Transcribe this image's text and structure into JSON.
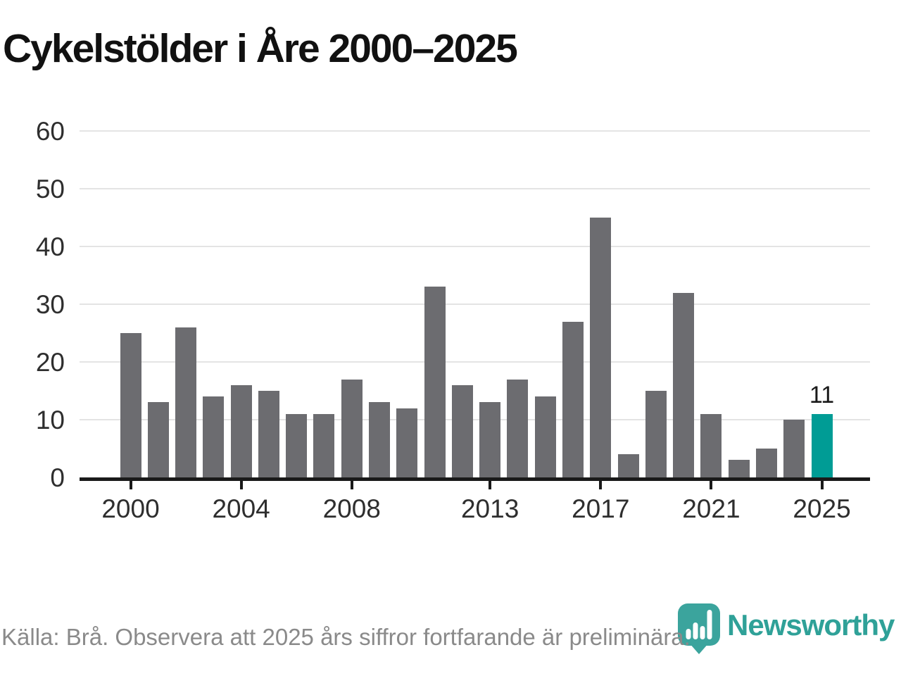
{
  "chart_data": {
    "type": "bar",
    "title": "Cykelstölder i Åre 2000–2025",
    "categories": [
      2000,
      2001,
      2002,
      2003,
      2004,
      2005,
      2006,
      2007,
      2008,
      2009,
      2010,
      2011,
      2012,
      2013,
      2014,
      2015,
      2016,
      2017,
      2018,
      2019,
      2020,
      2021,
      2022,
      2023,
      2024,
      2025
    ],
    "values": [
      25,
      13,
      26,
      14,
      16,
      15,
      11,
      11,
      17,
      13,
      12,
      33,
      16,
      13,
      17,
      14,
      27,
      45,
      4,
      15,
      32,
      11,
      3,
      5,
      10,
      11
    ],
    "highlight_category": 2025,
    "value_labels": {
      "2025": "11"
    },
    "xticks": [
      2000,
      2004,
      2008,
      2013,
      2017,
      2021,
      2025
    ],
    "yticks": [
      0,
      10,
      20,
      30,
      40,
      50,
      60
    ],
    "ylim": [
      0,
      60
    ],
    "xlabel": "",
    "ylabel": "",
    "grid": "horizontal",
    "legend": "none"
  },
  "footer": {
    "source_text": "Källa: Brå. Observera att 2025 års siffror fortfarande är preliminära.",
    "brand": "Newsworthy"
  },
  "colors": {
    "bar": "#6c6c70",
    "highlight": "#009c95",
    "gridline": "#e4e4e4",
    "axis": "#1a1a1a",
    "axis_label": "#2e2e2e",
    "title": "#111111",
    "value_label": "#1a1a1a",
    "source_text": "#8a8a8a",
    "brand_text": "#2fa198",
    "brand_pin": "#3ba49d",
    "background": "#ffffff"
  }
}
